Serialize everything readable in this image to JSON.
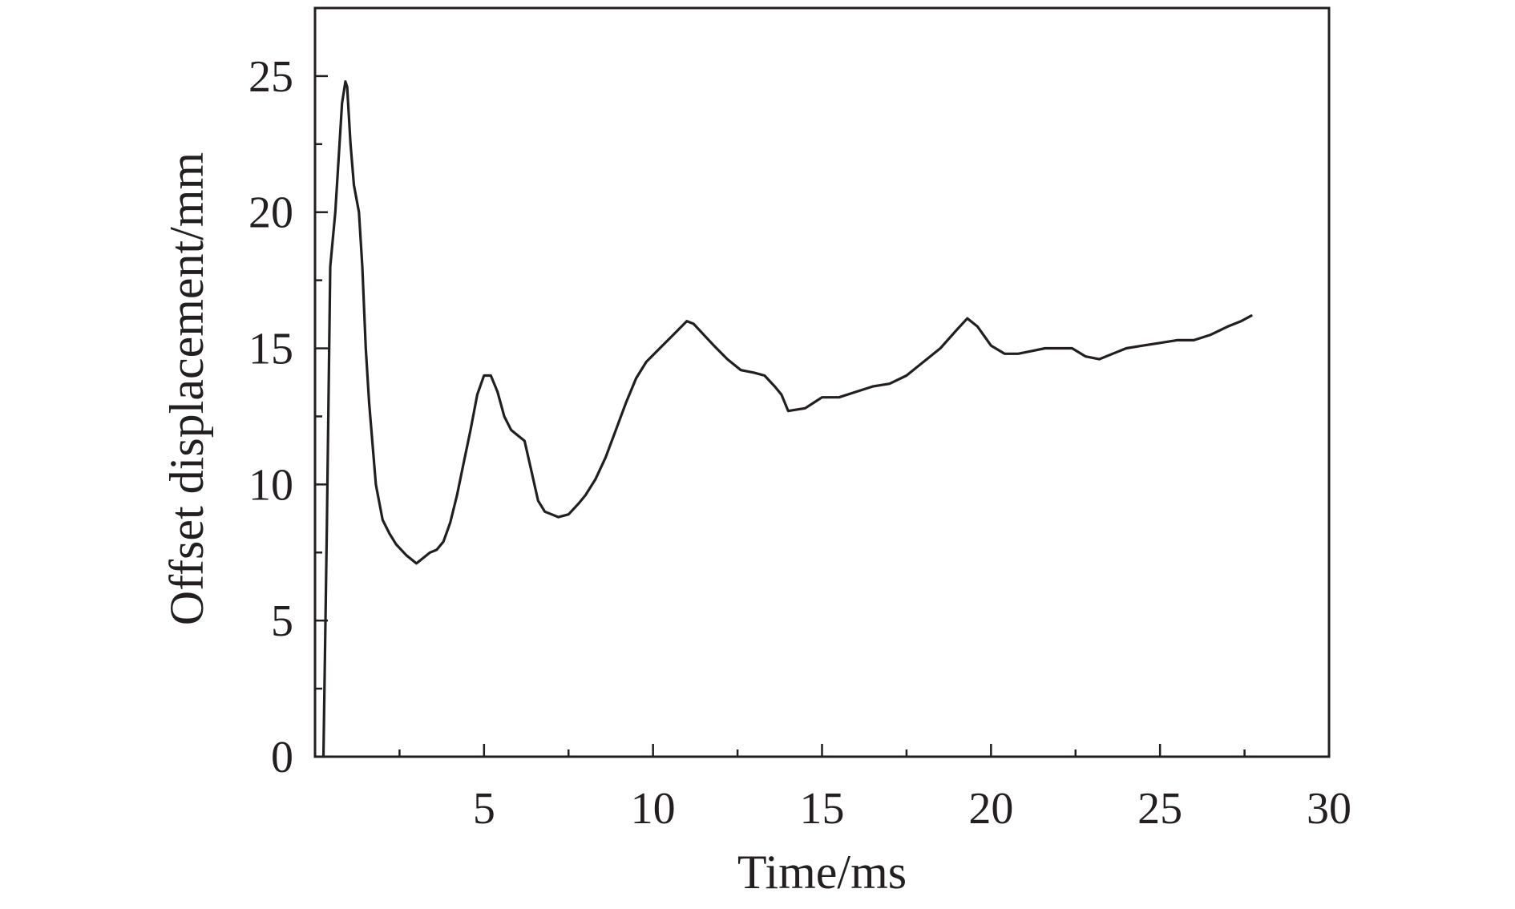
{
  "chart_data": {
    "type": "line",
    "title": "",
    "xlabel": "Time/ms",
    "ylabel": "Offset displacement/mm",
    "xlim": [
      0,
      30
    ],
    "ylim": [
      0,
      27.5
    ],
    "x_ticks": [
      5,
      10,
      15,
      20,
      25,
      30
    ],
    "y_ticks": [
      0,
      5,
      10,
      15,
      20,
      25
    ],
    "grid": false,
    "legend": "none",
    "colors": {
      "line": "#231f20",
      "axis": "#231f20",
      "background": "#ffffff"
    },
    "series": [
      {
        "x": [
          0.25,
          0.35,
          0.45,
          0.6,
          0.8,
          0.9,
          0.95,
          1.05,
          1.15,
          1.3,
          1.4,
          1.5,
          1.6,
          1.7,
          1.8,
          2.0,
          2.2,
          2.4,
          2.7,
          3.0,
          3.2,
          3.4,
          3.6,
          3.8,
          4.0,
          4.2,
          4.4,
          4.6,
          4.8,
          5.0,
          5.2,
          5.4,
          5.6,
          5.8,
          6.0,
          6.2,
          6.4,
          6.6,
          6.8,
          7.0,
          7.2,
          7.5,
          7.8,
          8.0,
          8.3,
          8.6,
          8.9,
          9.2,
          9.5,
          9.8,
          10.2,
          10.6,
          11.0,
          11.2,
          11.5,
          11.8,
          12.2,
          12.6,
          13.0,
          13.3,
          13.6,
          13.8,
          14.0,
          14.5,
          15.0,
          15.5,
          16.0,
          16.5,
          17.0,
          17.5,
          18.0,
          18.5,
          19.0,
          19.3,
          19.6,
          20.0,
          20.4,
          20.8,
          21.2,
          21.6,
          22.0,
          22.4,
          22.8,
          23.2,
          23.6,
          24.0,
          24.5,
          25.0,
          25.5,
          26.0,
          26.5,
          27.0,
          27.4,
          27.7
        ],
        "y": [
          0.0,
          8.5,
          18.0,
          20.0,
          24.0,
          24.8,
          24.6,
          22.5,
          21.0,
          20.0,
          18.0,
          15.0,
          13.0,
          11.5,
          10.0,
          8.7,
          8.2,
          7.8,
          7.4,
          7.1,
          7.3,
          7.5,
          7.6,
          7.9,
          8.6,
          9.6,
          10.8,
          12.0,
          13.3,
          14.0,
          14.0,
          13.4,
          12.5,
          12.0,
          11.8,
          11.6,
          10.5,
          9.4,
          9.0,
          8.9,
          8.8,
          8.9,
          9.3,
          9.6,
          10.2,
          11.0,
          12.0,
          13.0,
          13.9,
          14.5,
          15.0,
          15.5,
          16.0,
          15.9,
          15.5,
          15.1,
          14.6,
          14.2,
          14.1,
          14.0,
          13.6,
          13.3,
          12.7,
          12.8,
          13.2,
          13.2,
          13.4,
          13.6,
          13.7,
          14.0,
          14.5,
          15.0,
          15.7,
          16.1,
          15.8,
          15.1,
          14.8,
          14.8,
          14.9,
          15.0,
          15.0,
          15.0,
          14.7,
          14.6,
          14.8,
          15.0,
          15.1,
          15.2,
          15.3,
          15.3,
          15.5,
          15.8,
          16.0,
          16.2
        ]
      }
    ]
  }
}
